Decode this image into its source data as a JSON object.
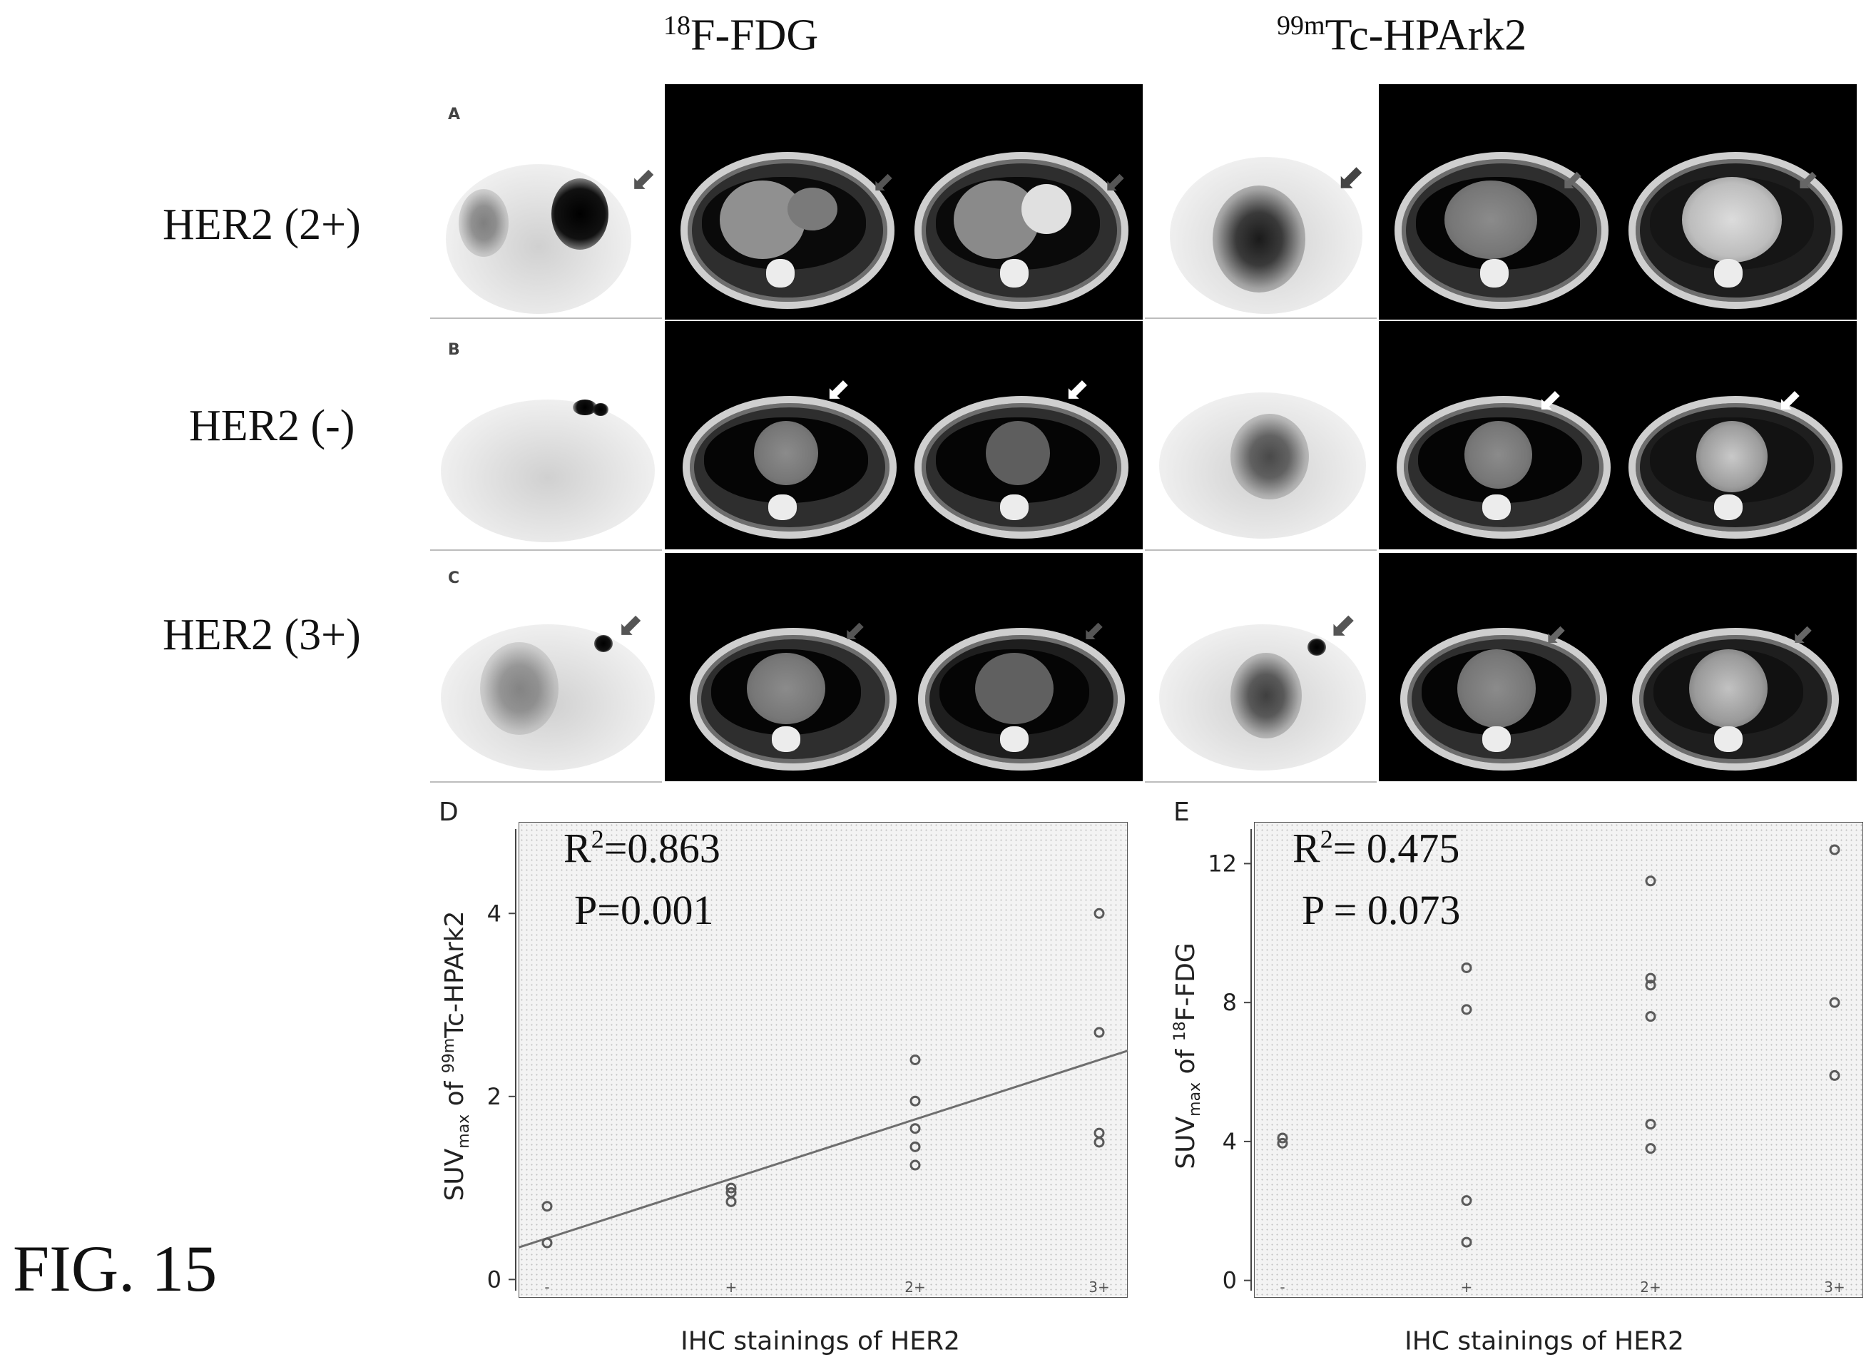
{
  "figure": {
    "label": "FIG. 15",
    "columns": [
      {
        "tracer_mass": "18",
        "tracer_name": "F-FDG"
      },
      {
        "tracer_mass": "99m",
        "tracer_name": "Tc-HPArk2"
      }
    ],
    "rows": [
      {
        "letter": "A",
        "label": "HER2 (2+)"
      },
      {
        "letter": "B",
        "label": "HER2 (-)"
      },
      {
        "letter": "C",
        "label": "HER2 (3+)"
      }
    ]
  },
  "chart_data": [
    {
      "panel": "D",
      "type": "scatter",
      "xlabel": "IHC stainings of HER2",
      "ylabel_prefix": "SUV",
      "ylabel_sub": "max",
      "ylabel_mid": " of ",
      "ylabel_sup": "99m",
      "ylabel_suffix": "Tc-HPArk2",
      "categories": [
        "-",
        "+",
        "2+",
        "3+"
      ],
      "yticks": [
        0,
        2,
        4
      ],
      "ylim": [
        -0.2,
        5.0
      ],
      "stats": {
        "r2_prefix": "R",
        "r2_sup": "2",
        "r2_value": "=0.863",
        "p": "P=0.001"
      },
      "points": [
        {
          "x": "-",
          "y": 0.8
        },
        {
          "x": "-",
          "y": 0.4
        },
        {
          "x": "+",
          "y": 1.0
        },
        {
          "x": "+",
          "y": 0.95
        },
        {
          "x": "+",
          "y": 0.85
        },
        {
          "x": "2+",
          "y": 2.4
        },
        {
          "x": "2+",
          "y": 1.95
        },
        {
          "x": "2+",
          "y": 1.65
        },
        {
          "x": "2+",
          "y": 1.45
        },
        {
          "x": "2+",
          "y": 1.25
        },
        {
          "x": "3+",
          "y": 4.0
        },
        {
          "x": "3+",
          "y": 2.7
        },
        {
          "x": "3+",
          "y": 1.6
        },
        {
          "x": "3+",
          "y": 1.5
        }
      ],
      "trendline": {
        "y_start": 0.35,
        "y_end": 2.5
      },
      "grid": false,
      "legend": "none"
    },
    {
      "panel": "E",
      "type": "scatter",
      "xlabel": "IHC stainings of HER2",
      "ylabel_prefix": "SUV",
      "ylabel_sub": "max",
      "ylabel_mid": " of ",
      "ylabel_sup": "18",
      "ylabel_suffix": "F-FDG",
      "categories": [
        "-",
        "+",
        "2+",
        "3+"
      ],
      "yticks": [
        0,
        4,
        8,
        12
      ],
      "ylim": [
        -0.5,
        13.2
      ],
      "stats": {
        "r2_prefix": "R",
        "r2_sup": "2",
        "r2_value": "= 0.475",
        "p": "P = 0.073"
      },
      "points": [
        {
          "x": "-",
          "y": 4.1
        },
        {
          "x": "-",
          "y": 3.95
        },
        {
          "x": "+",
          "y": 9.0
        },
        {
          "x": "+",
          "y": 7.8
        },
        {
          "x": "+",
          "y": 2.3
        },
        {
          "x": "+",
          "y": 1.1
        },
        {
          "x": "2+",
          "y": 11.5
        },
        {
          "x": "2+",
          "y": 8.7
        },
        {
          "x": "2+",
          "y": 8.5
        },
        {
          "x": "2+",
          "y": 7.6
        },
        {
          "x": "2+",
          "y": 4.5
        },
        {
          "x": "2+",
          "y": 3.8
        },
        {
          "x": "3+",
          "y": 12.4
        },
        {
          "x": "3+",
          "y": 8.0
        },
        {
          "x": "3+",
          "y": 5.9
        }
      ],
      "grid": false,
      "legend": "none"
    }
  ]
}
